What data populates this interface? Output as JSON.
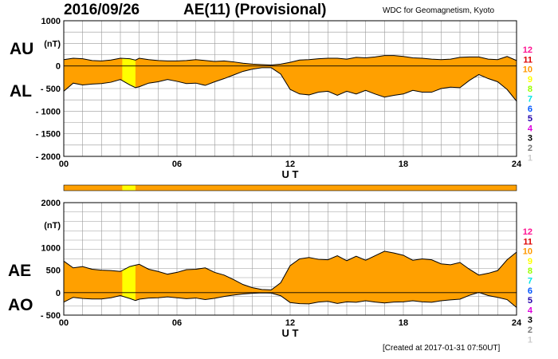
{
  "header": {
    "date": "2016/09/26",
    "title": "AE(11) (Provisional)",
    "source": "WDC for Geomagnetism, Kyoto"
  },
  "footer": "[Created at 2017-01-31 07:50UT]",
  "labels": {
    "au": "AU",
    "al": "AL",
    "ae": "AE",
    "ao": "AO"
  },
  "colors": {
    "fill": "#FFA000",
    "fill_highlight": "#FFFF00",
    "grid": "#999999",
    "outline": "#000000"
  },
  "levels": {
    "entries": [
      {
        "label": "12",
        "color": "#FF1493"
      },
      {
        "label": "11",
        "color": "#DD0000"
      },
      {
        "label": "10",
        "color": "#FF9900"
      },
      {
        "label": "9",
        "color": "#FFFF00"
      },
      {
        "label": "8",
        "color": "#99FF00"
      },
      {
        "label": "7",
        "color": "#00E5E5"
      },
      {
        "label": "6",
        "color": "#0055FF"
      },
      {
        "label": "5",
        "color": "#2200AA"
      },
      {
        "label": "4",
        "color": "#DD00DD"
      },
      {
        "label": "3",
        "color": "#000000"
      },
      {
        "label": "2",
        "color": "#777777"
      },
      {
        "label": "1",
        "color": "#CCCCCC"
      }
    ],
    "current": "10"
  },
  "chart_data": [
    {
      "type": "area",
      "name": "AU/AL",
      "unit": "(nT)",
      "ylim": [
        -2000,
        1000
      ],
      "yticks": [
        1000,
        500,
        0,
        -500,
        -1000,
        -1500,
        -2000
      ],
      "ytick_labels": [
        "1000",
        "(nT)",
        "0",
        "- 500",
        "- 1000",
        "- 1500",
        "- 2000"
      ],
      "xlim": [
        0,
        24
      ],
      "xticks": [
        0,
        6,
        12,
        18,
        24
      ],
      "xtick_labels": [
        "00",
        "06",
        "12",
        "18",
        "24"
      ],
      "xlabel": "U T",
      "grid": true,
      "highlight_range": [
        3.1,
        3.8
      ],
      "x": [
        0,
        0.5,
        1,
        1.5,
        2,
        2.5,
        3,
        3.5,
        3.8,
        4,
        4.5,
        5,
        5.5,
        6,
        6.5,
        7,
        7.5,
        8,
        8.5,
        9,
        9.5,
        10,
        10.5,
        11,
        11.5,
        12,
        12.5,
        13,
        13.5,
        14,
        14.5,
        15,
        15.5,
        16,
        16.5,
        17,
        17.5,
        18,
        18.5,
        19,
        19.5,
        20,
        20.5,
        21,
        21.5,
        22,
        22.5,
        23,
        23.5,
        24
      ],
      "series": [
        {
          "name": "AU",
          "values": [
            140,
            170,
            160,
            120,
            110,
            130,
            170,
            160,
            130,
            170,
            140,
            120,
            110,
            110,
            120,
            140,
            120,
            100,
            110,
            90,
            60,
            40,
            30,
            20,
            40,
            80,
            130,
            140,
            160,
            170,
            170,
            150,
            190,
            180,
            200,
            230,
            230,
            210,
            180,
            170,
            150,
            140,
            150,
            190,
            200,
            200,
            150,
            140,
            210,
            120
          ]
        },
        {
          "name": "AL",
          "values": [
            -560,
            -380,
            -420,
            -400,
            -390,
            -360,
            -300,
            -420,
            -480,
            -460,
            -380,
            -350,
            -300,
            -340,
            -390,
            -380,
            -430,
            -350,
            -280,
            -200,
            -120,
            -70,
            -40,
            -40,
            -180,
            -520,
            -620,
            -640,
            -580,
            -560,
            -650,
            -560,
            -620,
            -540,
            -620,
            -690,
            -650,
            -620,
            -540,
            -580,
            -580,
            -500,
            -470,
            -480,
            -320,
            -190,
            -280,
            -350,
            -520,
            -780
          ]
        }
      ]
    },
    {
      "type": "area",
      "name": "AE/AO",
      "unit": "(nT)",
      "ylim": [
        -500,
        2000
      ],
      "yticks": [
        2000,
        1500,
        1000,
        500,
        0,
        -500
      ],
      "ytick_labels": [
        "2000",
        "(nT)",
        "1000",
        "500",
        "0",
        "- 500"
      ],
      "xlim": [
        0,
        24
      ],
      "xticks": [
        0,
        6,
        12,
        18,
        24
      ],
      "xtick_labels": [
        "00",
        "06",
        "12",
        "18",
        "24"
      ],
      "xlabel": "U T",
      "grid": true,
      "highlight_range": [
        3.1,
        3.8
      ],
      "x": [
        0,
        0.5,
        1,
        1.5,
        2,
        2.5,
        3,
        3.5,
        3.8,
        4,
        4.5,
        5,
        5.5,
        6,
        6.5,
        7,
        7.5,
        8,
        8.5,
        9,
        9.5,
        10,
        10.5,
        11,
        11.5,
        12,
        12.5,
        13,
        13.5,
        14,
        14.5,
        15,
        15.5,
        16,
        16.5,
        17,
        17.5,
        18,
        18.5,
        19,
        19.5,
        20,
        20.5,
        21,
        21.5,
        22,
        22.5,
        23,
        23.5,
        24
      ],
      "series": [
        {
          "name": "AE",
          "values": [
            700,
            550,
            580,
            520,
            500,
            490,
            470,
            580,
            610,
            630,
            520,
            470,
            410,
            450,
            510,
            520,
            550,
            450,
            390,
            290,
            180,
            110,
            70,
            60,
            220,
            600,
            750,
            780,
            740,
            730,
            820,
            710,
            810,
            720,
            820,
            920,
            880,
            830,
            720,
            750,
            730,
            640,
            620,
            670,
            520,
            390,
            430,
            490,
            730,
            900
          ]
        },
        {
          "name": "AO",
          "values": [
            -210,
            -105,
            -130,
            -140,
            -140,
            -115,
            -65,
            -130,
            -175,
            -145,
            -120,
            -115,
            -95,
            -115,
            -135,
            -120,
            -155,
            -125,
            -85,
            -55,
            -30,
            -15,
            -5,
            -10,
            -70,
            -220,
            -245,
            -250,
            -210,
            -195,
            -240,
            -205,
            -215,
            -180,
            -210,
            -230,
            -210,
            -205,
            -180,
            -205,
            -215,
            -180,
            -160,
            -145,
            -60,
            5,
            -65,
            -105,
            -155,
            -330
          ]
        }
      ]
    }
  ]
}
